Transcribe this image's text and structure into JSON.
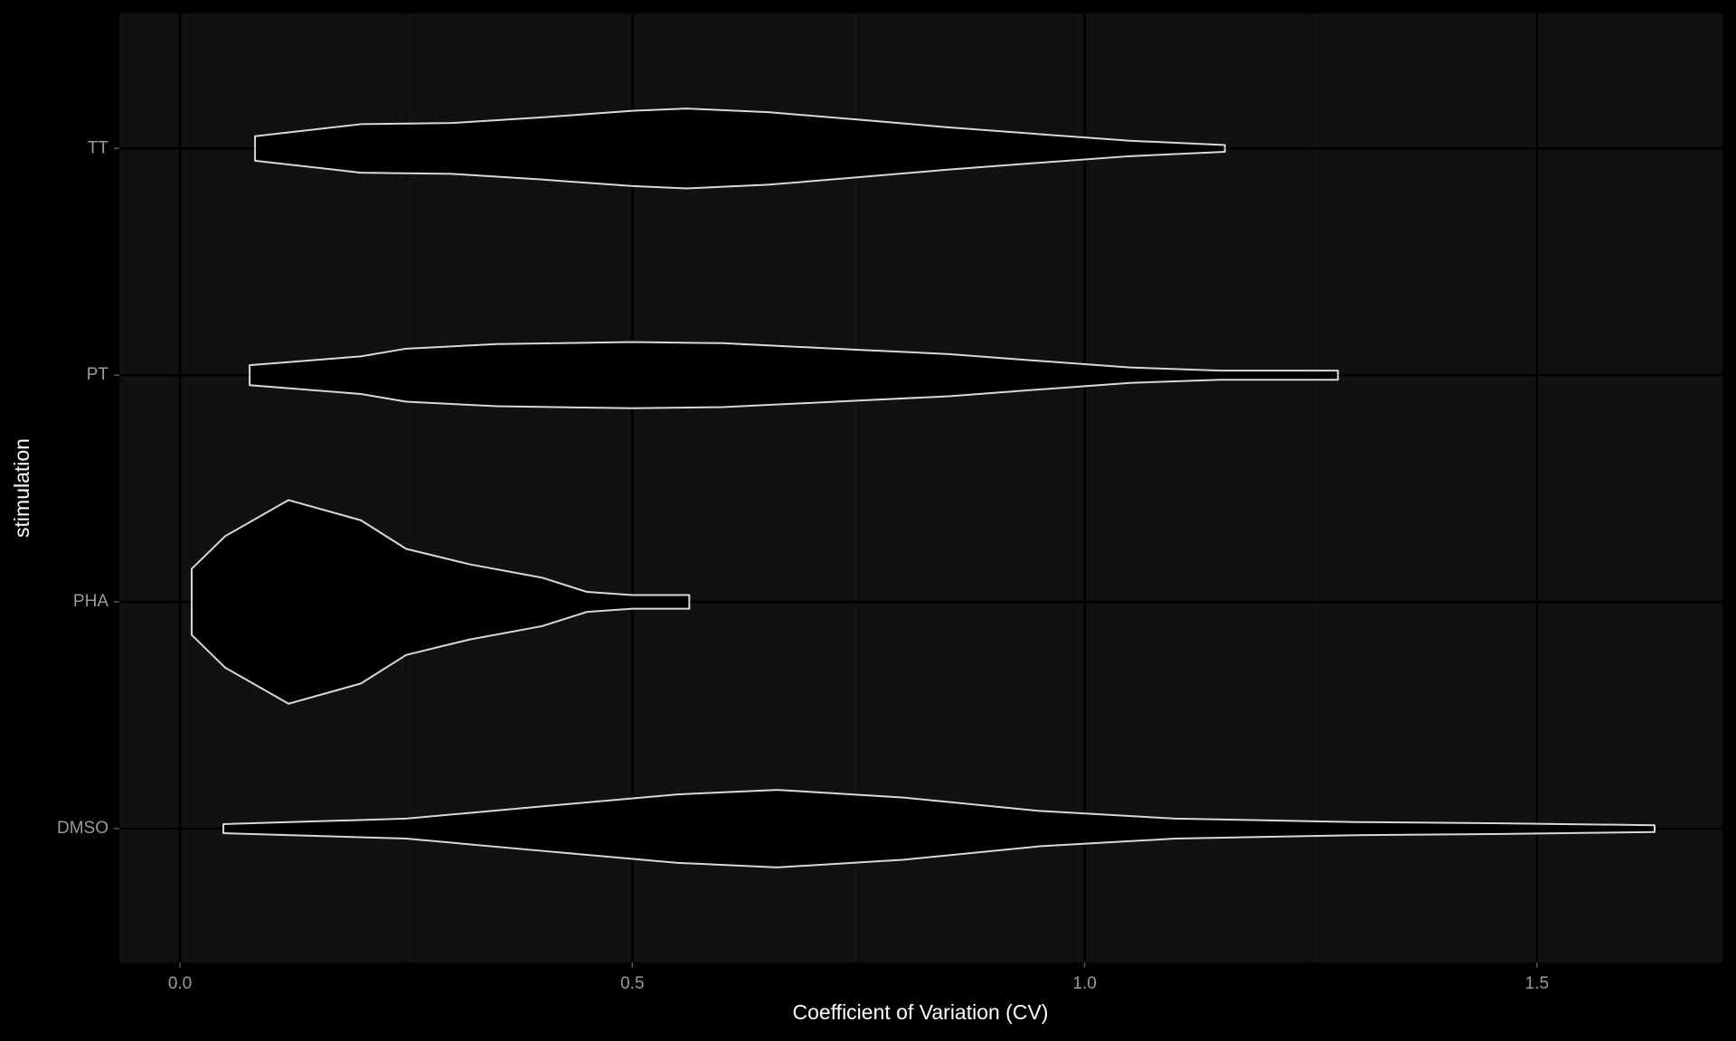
{
  "chart_data": {
    "type": "violin",
    "x_label": "Coefficient of Variation (CV)",
    "y_label": "stimulation",
    "categories": [
      "DMSO",
      "PHA",
      "PT",
      "TT"
    ],
    "violins": [
      {
        "x": [
          0.048,
          0.25,
          0.4,
          0.55,
          0.66,
          0.8,
          0.95,
          1.1,
          1.3,
          1.45,
          1.63
        ],
        "density": [
          0.02,
          0.044,
          0.098,
          0.151,
          0.171,
          0.137,
          0.078,
          0.044,
          0.029,
          0.024,
          0.015
        ]
      },
      {
        "x": [
          0.013,
          0.05,
          0.12,
          0.2,
          0.25,
          0.32,
          0.4,
          0.45,
          0.5,
          0.563
        ],
        "density": [
          0.146,
          0.29,
          0.449,
          0.36,
          0.234,
          0.166,
          0.107,
          0.044,
          0.03,
          0.03
        ]
      },
      {
        "x": [
          0.077,
          0.2,
          0.25,
          0.35,
          0.5,
          0.6,
          0.75,
          0.85,
          0.95,
          1.05,
          1.15,
          1.28
        ],
        "density": [
          0.044,
          0.083,
          0.117,
          0.137,
          0.146,
          0.141,
          0.112,
          0.093,
          0.063,
          0.034,
          0.02,
          0.02
        ]
      },
      {
        "x": [
          0.083,
          0.2,
          0.3,
          0.4,
          0.5,
          0.56,
          0.65,
          0.75,
          0.85,
          0.95,
          1.05,
          1.155
        ],
        "density": [
          0.054,
          0.107,
          0.112,
          0.137,
          0.166,
          0.176,
          0.16,
          0.127,
          0.093,
          0.063,
          0.034,
          0.015
        ]
      }
    ],
    "fill": "#000000",
    "stroke": "#d9d9d9",
    "xlim": [
      -0.067,
      1.705
    ],
    "ylim": [
      0.41,
      4.595
    ],
    "xticks": [
      {
        "value": 0,
        "label": "0.0"
      },
      {
        "value": 0.5,
        "label": "0.5"
      },
      {
        "value": 1,
        "label": "1.0"
      },
      {
        "value": 1.5,
        "label": "1.5"
      }
    ],
    "xminorticks": [
      0.25,
      0.75,
      1.25
    ],
    "grid": true
  }
}
